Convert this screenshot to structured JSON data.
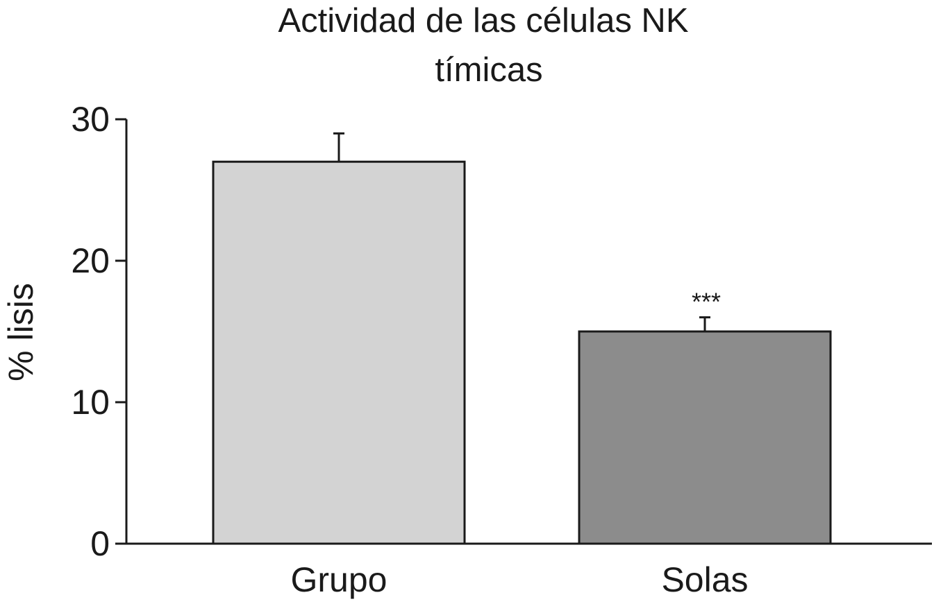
{
  "chart_data": {
    "type": "bar",
    "title_lines": [
      "Actividad de las células NK",
      "tímicas"
    ],
    "xlabel": "",
    "ylabel": "% lisis",
    "ylim": [
      0,
      30
    ],
    "yticks": [
      0,
      10,
      20,
      30
    ],
    "categories": [
      "Grupo",
      "Solas"
    ],
    "values": [
      27,
      15
    ],
    "errors": [
      2,
      1
    ],
    "annotations": [
      "",
      "***"
    ],
    "colors": [
      "#d3d3d3",
      "#8c8c8c"
    ],
    "grid": false
  }
}
